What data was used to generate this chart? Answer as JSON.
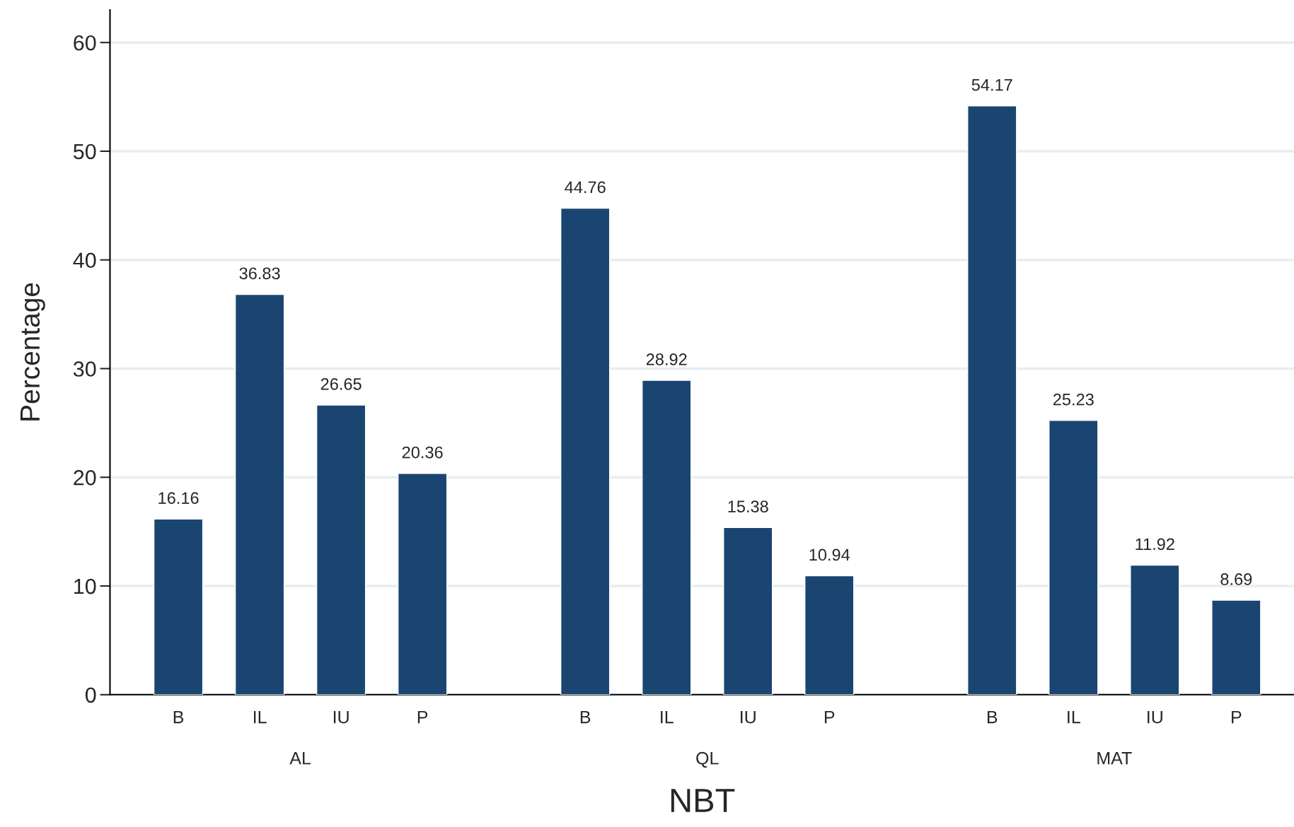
{
  "chart_data": {
    "type": "bar",
    "xlabel": "NBT",
    "ylabel": "Percentage",
    "categories": [
      "B",
      "IL",
      "IU",
      "P",
      null,
      "B",
      "IL",
      "IU",
      "P",
      null,
      "B",
      "IL",
      "IU",
      "P"
    ],
    "values": [
      16.16,
      36.83,
      26.65,
      20.36,
      null,
      44.76,
      28.92,
      15.38,
      10.94,
      null,
      54.17,
      25.23,
      11.92,
      8.69
    ],
    "color": "#1a4571",
    "data_labels": true,
    "ylim": [
      0,
      63
    ],
    "yticks": [
      0,
      10,
      20,
      30,
      40,
      50,
      60
    ],
    "grid": "y",
    "annotations": [
      "AL",
      "QL",
      "MAT"
    ]
  }
}
